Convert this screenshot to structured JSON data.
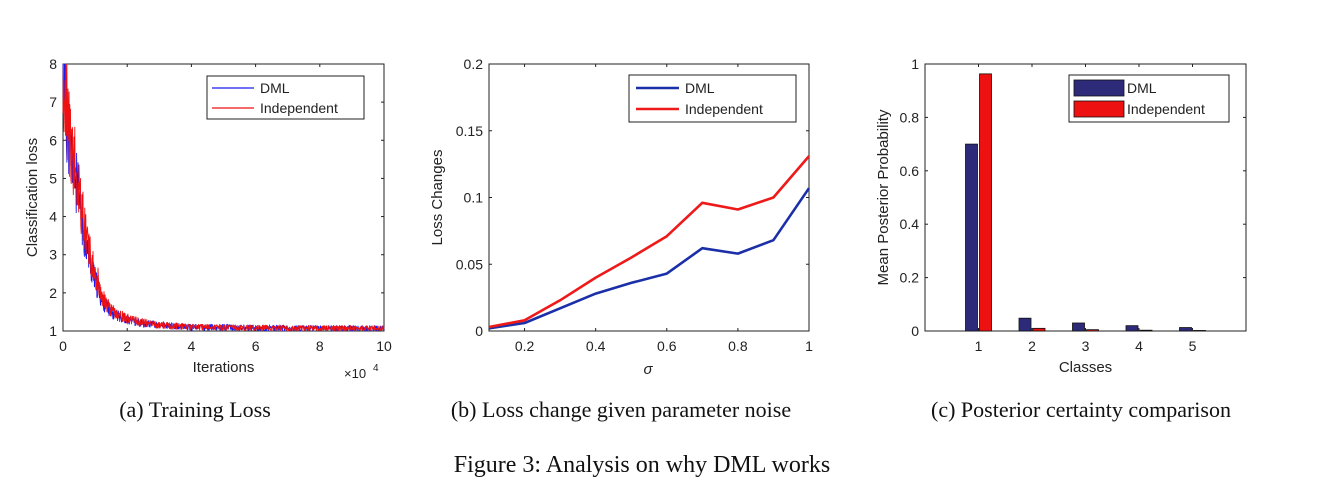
{
  "figure_caption": "Figure 3: Analysis on why DML works",
  "colors": {
    "dml_line": "#1a1aee",
    "independent_line": "#ee1111",
    "dml_b": "#1b2fa8",
    "independent_b": "#ee1a1a",
    "dml_bar": "#2e2a7a",
    "independent_bar": "#ee1111"
  },
  "chart_data": [
    {
      "type": "line",
      "caption": "(a) Training Loss",
      "xlabel": "Iterations",
      "x_multiplier_label": "×10",
      "x_multiplier_exp": "4",
      "ylabel": "Classification loss",
      "xlim": [
        0,
        10
      ],
      "ylim": [
        1,
        8
      ],
      "xticks": [
        "0",
        "2",
        "4",
        "6",
        "8",
        "10"
      ],
      "yticks": [
        "1",
        "2",
        "3",
        "4",
        "5",
        "6",
        "7",
        "8"
      ],
      "legend": [
        "DML",
        "Independent"
      ],
      "legend_position": "top-right",
      "series": [
        {
          "name": "DML",
          "noisy": true,
          "x": [
            0,
            0.1,
            0.2,
            0.35,
            0.5,
            0.7,
            0.9,
            1.2,
            1.5,
            2,
            2.5,
            3,
            4,
            5,
            6,
            7,
            8,
            9,
            10
          ],
          "y": [
            7.6,
            6.8,
            6.0,
            5.2,
            4.4,
            3.4,
            2.6,
            1.8,
            1.5,
            1.3,
            1.2,
            1.15,
            1.1,
            1.1,
            1.08,
            1.08,
            1.07,
            1.07,
            1.07
          ]
        },
        {
          "name": "Independent",
          "noisy": true,
          "x": [
            0,
            0.1,
            0.2,
            0.35,
            0.5,
            0.7,
            0.9,
            1.2,
            1.5,
            2,
            2.5,
            3,
            4,
            5,
            6,
            7,
            8,
            9,
            10
          ],
          "y": [
            7.2,
            6.9,
            6.2,
            5.5,
            4.6,
            3.6,
            2.8,
            1.9,
            1.55,
            1.32,
            1.22,
            1.16,
            1.1,
            1.09,
            1.08,
            1.07,
            1.07,
            1.07,
            1.06
          ]
        }
      ]
    },
    {
      "type": "line",
      "caption": "(b) Loss change given parameter noise",
      "xlabel": "σ",
      "ylabel": "Loss Changes",
      "xlim": [
        0.1,
        1
      ],
      "ylim": [
        0,
        0.2
      ],
      "xticks": [
        "0.2",
        "0.4",
        "0.6",
        "0.8",
        "1"
      ],
      "yticks": [
        "0",
        "0.05",
        "0.1",
        "0.15",
        "0.2"
      ],
      "legend": [
        "DML",
        "Independent"
      ],
      "legend_position": "top-right",
      "series": [
        {
          "name": "DML",
          "x": [
            0.1,
            0.2,
            0.3,
            0.4,
            0.5,
            0.6,
            0.7,
            0.8,
            0.9,
            1.0
          ],
          "y": [
            0.002,
            0.006,
            0.017,
            0.028,
            0.036,
            0.043,
            0.062,
            0.058,
            0.068,
            0.107
          ]
        },
        {
          "name": "Independent",
          "x": [
            0.1,
            0.2,
            0.3,
            0.4,
            0.5,
            0.6,
            0.7,
            0.8,
            0.9,
            1.0
          ],
          "y": [
            0.003,
            0.008,
            0.023,
            0.04,
            0.055,
            0.071,
            0.096,
            0.091,
            0.1,
            0.131
          ]
        }
      ]
    },
    {
      "type": "bar",
      "caption": "(c) Posterior certainty comparison",
      "xlabel": "Classes",
      "ylabel": "Mean Posterior Probability",
      "categories": [
        "1",
        "2",
        "3",
        "4",
        "5"
      ],
      "xlim": [
        0,
        6
      ],
      "ylim": [
        0,
        1
      ],
      "yticks": [
        "0",
        "0.2",
        "0.4",
        "0.6",
        "0.8",
        "1"
      ],
      "legend": [
        "DML",
        "Independent"
      ],
      "legend_position": "top-right",
      "series": [
        {
          "name": "DML",
          "values": [
            0.7,
            0.048,
            0.03,
            0.02,
            0.013
          ]
        },
        {
          "name": "Independent",
          "values": [
            0.963,
            0.01,
            0.005,
            0.003,
            0.002
          ]
        }
      ]
    }
  ]
}
